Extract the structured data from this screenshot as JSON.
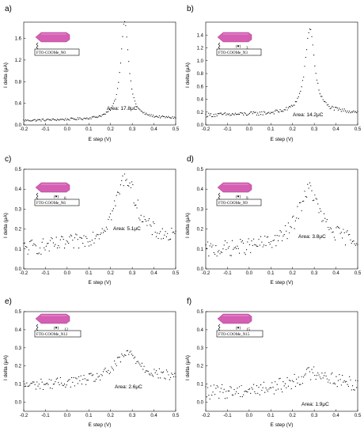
{
  "colors": {
    "rod": "#d45fb3",
    "rod_top": "#e88ccd",
    "ink": "#000000"
  },
  "panels": [
    {
      "label": "a)",
      "area": "Area: 17.8μC",
      "sample": "FTO-COOMe_N0",
      "stack": ""
    },
    {
      "label": "b)",
      "area": "Area: 14.2μC",
      "sample": "FTO-COOMe_N3",
      "stack": "3"
    },
    {
      "label": "c)",
      "area": "Area: 5.1μC",
      "sample": "FTO-COOMe_N6",
      "stack": "6"
    },
    {
      "label": "d)",
      "area": "Area: 3.8μC",
      "sample": "FTO-COOMe_N9",
      "stack": "9"
    },
    {
      "label": "e)",
      "area": "Area: 2.6μC",
      "sample": "FTO-COOMe_N12",
      "stack": "12"
    },
    {
      "label": "f)",
      "area": "Area: 1.9μC",
      "sample": "FTO-COOMe_N15",
      "stack": "15"
    }
  ],
  "chart_data": [
    {
      "type": "scatter",
      "xlabel": "E step (V)",
      "ylabel": "I delta (μA)",
      "xlim": [
        -0.2,
        0.5
      ],
      "ylim": [
        0,
        1.9
      ],
      "xticks": [
        "-0.2",
        "-0.1",
        "0.0",
        "0.1",
        "0.2",
        "0.3",
        "0.4",
        "0.5"
      ],
      "yticks": [
        "0.0",
        "0.4",
        "0.8",
        "1.2",
        "1.6"
      ],
      "series": [
        {
          "model": "peak",
          "base": 0.08,
          "slope": 0.15,
          "peak_x": 0.265,
          "peak_y": 1.9,
          "width": 0.022,
          "noise": 0.02,
          "n": 150
        }
      ]
    },
    {
      "type": "scatter",
      "xlabel": "E step (V)",
      "ylabel": "I delta (μA)",
      "xlim": [
        -0.2,
        0.5
      ],
      "ylim": [
        0,
        1.6
      ],
      "xticks": [
        "-0.2",
        "-0.1",
        "0.0",
        "0.1",
        "0.2",
        "0.3",
        "0.4",
        "0.5"
      ],
      "yticks": [
        "0.0",
        "0.2",
        "0.4",
        "0.6",
        "0.8",
        "1.0",
        "1.2",
        "1.4"
      ],
      "series": [
        {
          "model": "peak",
          "base": 0.15,
          "slope": 0.15,
          "peak_x": 0.28,
          "peak_y": 1.48,
          "width": 0.026,
          "noise": 0.03,
          "n": 150
        }
      ]
    },
    {
      "type": "scatter",
      "xlabel": "E step (V)",
      "ylabel": "I delta (μA)",
      "xlim": [
        -0.2,
        0.5
      ],
      "ylim": [
        0,
        0.5
      ],
      "xticks": [
        "-0.2",
        "-0.1",
        "0.0",
        "0.1",
        "0.2",
        "0.3",
        "0.4",
        "0.5"
      ],
      "yticks": [
        "0.0",
        "0.1",
        "0.2",
        "0.3",
        "0.4",
        "0.5"
      ],
      "series": [
        {
          "model": "peak",
          "base": 0.1,
          "slope": 0.15,
          "peak_x": 0.27,
          "peak_y": 0.43,
          "width": 0.06,
          "noise": 0.04,
          "n": 150
        }
      ]
    },
    {
      "type": "scatter",
      "xlabel": "E step (V)",
      "ylabel": "I delta (μA)",
      "xlim": [
        -0.2,
        0.5
      ],
      "ylim": [
        0,
        0.5
      ],
      "xticks": [
        "-0.2",
        "-0.1",
        "0.0",
        "0.1",
        "0.2",
        "0.3",
        "0.4",
        "0.5"
      ],
      "yticks": [
        "0.0",
        "0.1",
        "0.2",
        "0.3",
        "0.4",
        "0.5"
      ],
      "series": [
        {
          "model": "peak",
          "base": 0.09,
          "slope": 0.15,
          "peak_x": 0.275,
          "peak_y": 0.37,
          "width": 0.06,
          "noise": 0.04,
          "n": 150
        }
      ]
    },
    {
      "type": "scatter",
      "xlabel": "E step (V)",
      "ylabel": "I delta (μA)",
      "xlim": [
        -0.2,
        0.5
      ],
      "ylim": [
        -0.05,
        0.5
      ],
      "xticks": [
        "-0.2",
        "-0.1",
        "0.0",
        "0.1",
        "0.2",
        "0.3",
        "0.4",
        "0.5"
      ],
      "yticks": [
        "0.0",
        "0.1",
        "0.2",
        "0.3",
        "0.4",
        "0.5"
      ],
      "series": [
        {
          "model": "peak",
          "base": 0.09,
          "slope": 0.15,
          "peak_x": 0.28,
          "peak_y": 0.24,
          "width": 0.07,
          "noise": 0.03,
          "n": 150
        }
      ]
    },
    {
      "type": "scatter",
      "xlabel": "E step (V)",
      "ylabel": "I delta (μA)",
      "xlim": [
        -0.2,
        0.5
      ],
      "ylim": [
        -0.05,
        0.5
      ],
      "xticks": [
        "-0.2",
        "-0.1",
        "0.0",
        "0.1",
        "0.2",
        "0.3",
        "0.4",
        "0.5"
      ],
      "yticks": [
        "0.0",
        "0.1",
        "0.2",
        "0.3",
        "0.4",
        "0.5"
      ],
      "series": [
        {
          "model": "peak",
          "base": 0.05,
          "slope": 0.12,
          "peak_x": 0.3,
          "peak_y": 0.14,
          "width": 0.1,
          "noise": 0.04,
          "n": 150
        }
      ]
    }
  ]
}
